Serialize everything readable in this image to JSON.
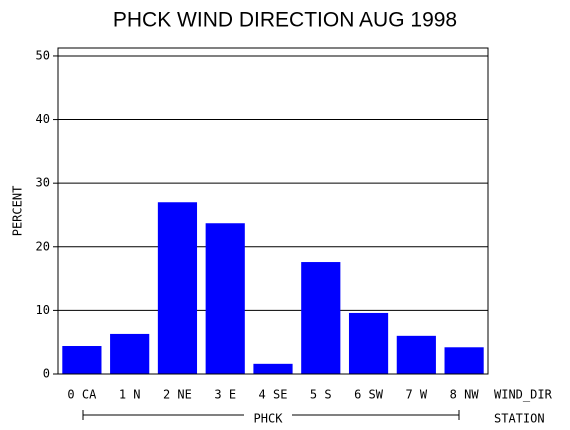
{
  "chart_data": {
    "type": "bar",
    "title": "PHCK WIND DIRECTION AUG 1998",
    "y_label": "PERCENT",
    "x_label": "WIND_DIR",
    "group_label": "PHCK",
    "group_axis_label": "STATION",
    "categories": [
      "0 CA",
      "1 N",
      "2 NE",
      "3 E",
      "4 SE",
      "5 S",
      "6 SW",
      "7 W",
      "8 NW"
    ],
    "values": [
      4.4,
      6.3,
      27.0,
      23.7,
      1.6,
      17.6,
      9.6,
      6.0,
      4.2
    ],
    "color": "#0000ff",
    "ylim": [
      0,
      51.25
    ],
    "yticks": [
      0,
      10,
      20,
      30,
      40,
      50
    ],
    "grid": true
  }
}
